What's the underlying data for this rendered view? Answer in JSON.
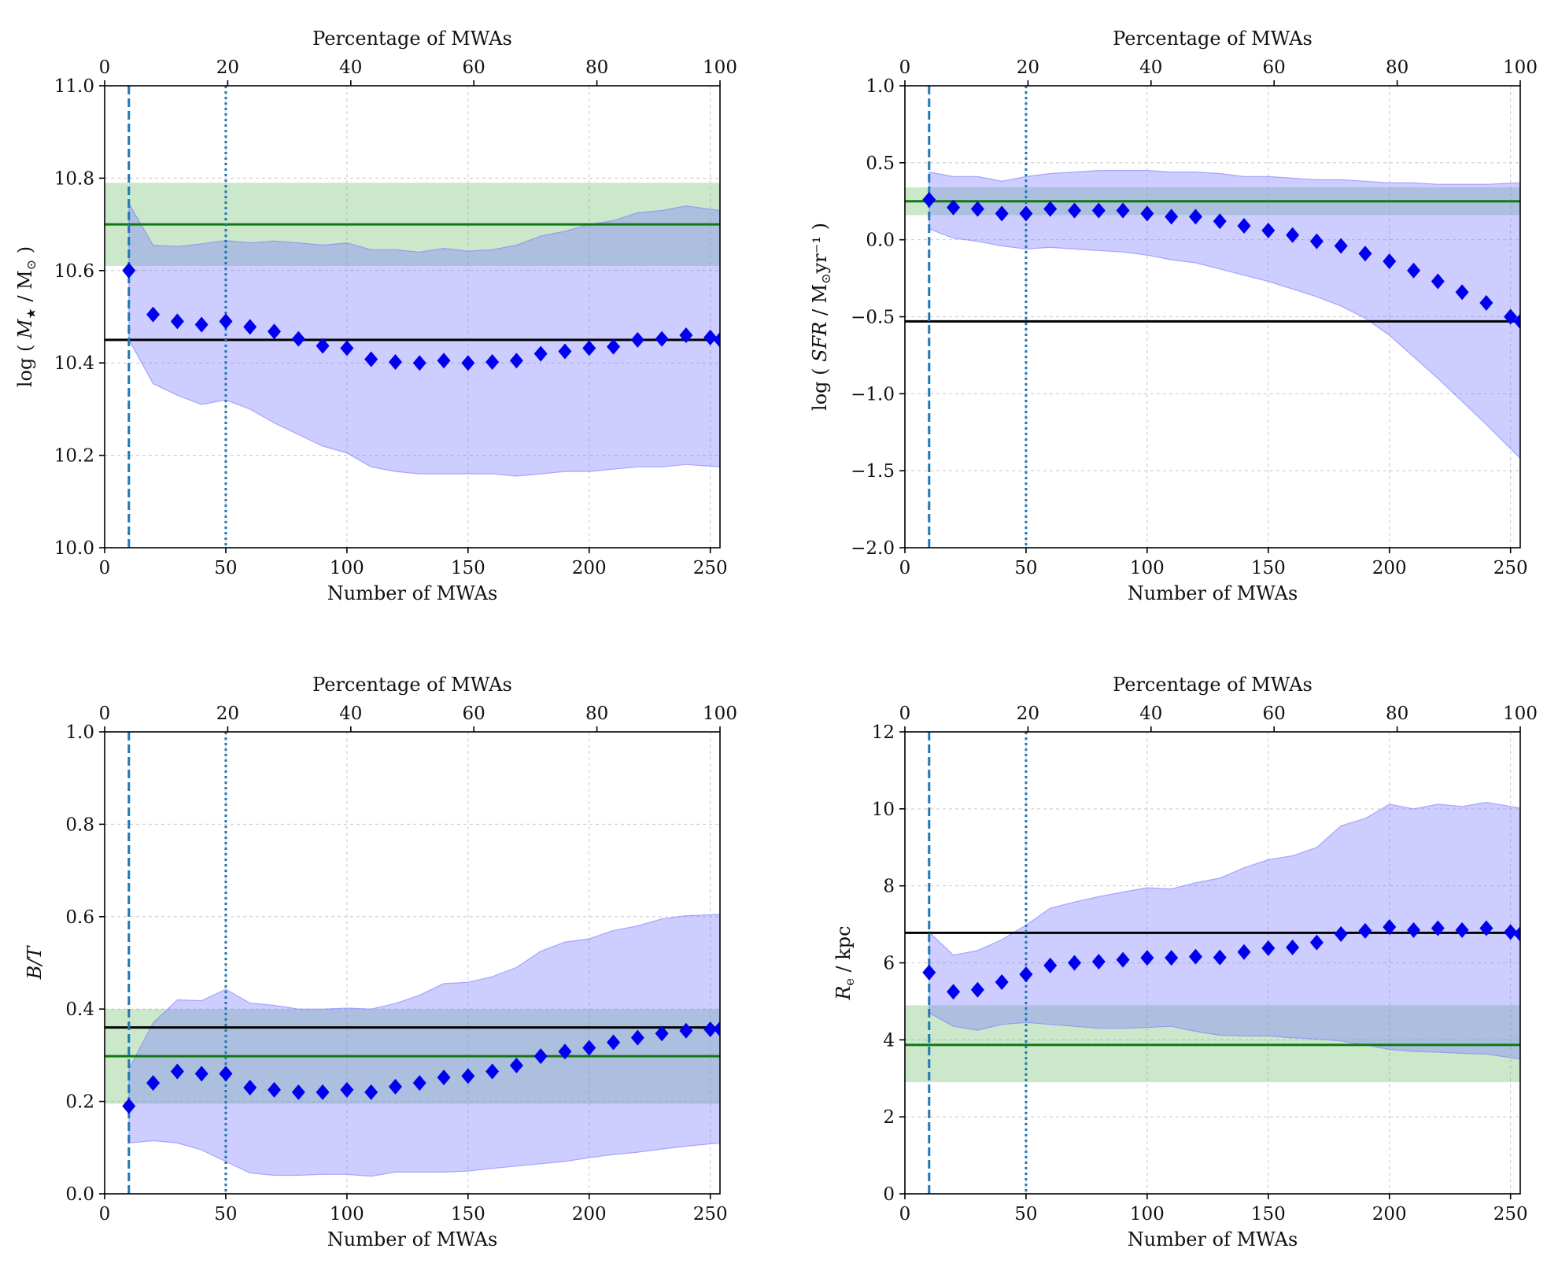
{
  "colors": {
    "band": "#7b7bff",
    "reference_band": "#5cb85c",
    "points": "#0000ee",
    "reference_line": "#117711",
    "sample_line": "#000000",
    "marker_lines": "#1f77b4"
  },
  "chart_data": [
    {
      "type": "scatter",
      "id": "stellar-mass",
      "xlabel": "Number of MWAs",
      "x2label": "Percentage of MWAs",
      "ylabel_parts": [
        "log ( ",
        "M",
        "★",
        " / M",
        "⊙",
        " )"
      ],
      "xlim": [
        0,
        254
      ],
      "ylim": [
        10.0,
        11.0
      ],
      "xticks": [
        0,
        50,
        100,
        150,
        200,
        250
      ],
      "x2ticks": [
        0,
        20,
        40,
        60,
        80,
        100
      ],
      "yticks": [
        10.0,
        10.2,
        10.4,
        10.6,
        10.8,
        11.0
      ],
      "ytick_labels": [
        "10.0",
        "10.2",
        "10.4",
        "10.6",
        "10.8",
        "11.0"
      ],
      "band": {
        "x": [
          10,
          20,
          30,
          40,
          50,
          60,
          70,
          80,
          90,
          100,
          110,
          120,
          130,
          140,
          150,
          160,
          170,
          180,
          190,
          200,
          210,
          220,
          230,
          240,
          254
        ],
        "lower": [
          10.45,
          10.355,
          10.33,
          10.31,
          10.32,
          10.3,
          10.27,
          10.245,
          10.22,
          10.205,
          10.175,
          10.165,
          10.16,
          10.16,
          10.16,
          10.16,
          10.155,
          10.16,
          10.165,
          10.165,
          10.17,
          10.175,
          10.175,
          10.18,
          10.175
        ],
        "upper": [
          10.745,
          10.655,
          10.652,
          10.658,
          10.665,
          10.66,
          10.664,
          10.66,
          10.655,
          10.66,
          10.645,
          10.645,
          10.64,
          10.648,
          10.642,
          10.645,
          10.655,
          10.675,
          10.685,
          10.7,
          10.708,
          10.725,
          10.73,
          10.74,
          10.73
        ]
      },
      "points": {
        "x": [
          10,
          20,
          30,
          40,
          50,
          60,
          70,
          80,
          90,
          100,
          110,
          120,
          130,
          140,
          150,
          160,
          170,
          180,
          190,
          200,
          210,
          220,
          230,
          240,
          250,
          254
        ],
        "y": [
          10.6,
          10.505,
          10.49,
          10.483,
          10.49,
          10.478,
          10.468,
          10.452,
          10.437,
          10.432,
          10.408,
          10.402,
          10.4,
          10.405,
          10.4,
          10.402,
          10.405,
          10.42,
          10.425,
          10.432,
          10.435,
          10.45,
          10.452,
          10.46,
          10.455,
          10.45
        ]
      },
      "reference_band": [
        10.61,
        10.79
      ],
      "reference_line": 10.7,
      "sample_line": 10.45,
      "dashed_x": 10,
      "dotted_x": 50
    },
    {
      "type": "scatter",
      "id": "star-formation-rate",
      "xlabel": "Number of MWAs",
      "x2label": "Percentage of MWAs",
      "ylabel_parts": [
        "log ( ",
        "SFR",
        "",
        " / M",
        "⊙",
        "yr⁻¹ )"
      ],
      "xlim": [
        0,
        254
      ],
      "ylim": [
        -2.0,
        1.0
      ],
      "xticks": [
        0,
        50,
        100,
        150,
        200,
        250
      ],
      "x2ticks": [
        0,
        20,
        40,
        60,
        80,
        100
      ],
      "yticks": [
        -2.0,
        -1.5,
        -1.0,
        -0.5,
        0.0,
        0.5,
        1.0
      ],
      "ytick_labels": [
        "−2.0",
        "−1.5",
        "−1.0",
        "−0.5",
        "0.0",
        "0.5",
        "1.0"
      ],
      "band": {
        "x": [
          10,
          20,
          30,
          40,
          50,
          60,
          70,
          80,
          90,
          100,
          110,
          120,
          130,
          140,
          150,
          160,
          170,
          180,
          190,
          200,
          210,
          220,
          230,
          240,
          254
        ],
        "lower": [
          0.07,
          0.01,
          -0.01,
          -0.04,
          -0.06,
          -0.05,
          -0.06,
          -0.07,
          -0.08,
          -0.1,
          -0.13,
          -0.15,
          -0.19,
          -0.23,
          -0.27,
          -0.32,
          -0.37,
          -0.43,
          -0.51,
          -0.62,
          -0.76,
          -0.9,
          -1.05,
          -1.2,
          -1.42
        ],
        "upper": [
          0.44,
          0.41,
          0.41,
          0.38,
          0.41,
          0.43,
          0.44,
          0.45,
          0.45,
          0.45,
          0.44,
          0.44,
          0.43,
          0.41,
          0.41,
          0.4,
          0.39,
          0.39,
          0.38,
          0.37,
          0.37,
          0.36,
          0.36,
          0.36,
          0.37
        ]
      },
      "points": {
        "x": [
          10,
          20,
          30,
          40,
          50,
          60,
          70,
          80,
          90,
          100,
          110,
          120,
          130,
          140,
          150,
          160,
          170,
          180,
          190,
          200,
          210,
          220,
          230,
          240,
          250,
          254
        ],
        "y": [
          0.26,
          0.21,
          0.2,
          0.17,
          0.17,
          0.2,
          0.19,
          0.19,
          0.19,
          0.17,
          0.15,
          0.15,
          0.12,
          0.09,
          0.06,
          0.03,
          -0.01,
          -0.04,
          -0.09,
          -0.14,
          -0.2,
          -0.27,
          -0.34,
          -0.41,
          -0.5,
          -0.53
        ]
      },
      "reference_band": [
        0.16,
        0.34
      ],
      "reference_line": 0.25,
      "sample_line": -0.53,
      "dashed_x": 10,
      "dotted_x": 50
    },
    {
      "type": "scatter",
      "id": "bulge-to-total",
      "xlabel": "Number of MWAs",
      "x2label": "Percentage of MWAs",
      "ylabel_parts": [
        "",
        "B/T",
        "",
        "",
        "",
        ""
      ],
      "xlim": [
        0,
        254
      ],
      "ylim": [
        0.0,
        1.0
      ],
      "xticks": [
        0,
        50,
        100,
        150,
        200,
        250
      ],
      "x2ticks": [
        0,
        20,
        40,
        60,
        80,
        100
      ],
      "yticks": [
        0.0,
        0.2,
        0.4,
        0.6,
        0.8,
        1.0
      ],
      "ytick_labels": [
        "0.0",
        "0.2",
        "0.4",
        "0.6",
        "0.8",
        "1.0"
      ],
      "band": {
        "x": [
          10,
          20,
          30,
          40,
          50,
          60,
          70,
          80,
          90,
          100,
          110,
          120,
          130,
          140,
          150,
          160,
          170,
          180,
          190,
          200,
          210,
          220,
          230,
          240,
          254
        ],
        "lower": [
          0.11,
          0.115,
          0.11,
          0.095,
          0.07,
          0.045,
          0.04,
          0.04,
          0.042,
          0.042,
          0.038,
          0.047,
          0.047,
          0.047,
          0.049,
          0.055,
          0.06,
          0.065,
          0.07,
          0.078,
          0.085,
          0.09,
          0.097,
          0.103,
          0.11
        ],
        "upper": [
          0.27,
          0.37,
          0.42,
          0.418,
          0.443,
          0.413,
          0.408,
          0.4,
          0.4,
          0.402,
          0.4,
          0.412,
          0.43,
          0.455,
          0.458,
          0.47,
          0.49,
          0.525,
          0.545,
          0.552,
          0.57,
          0.58,
          0.595,
          0.602,
          0.605
        ]
      },
      "points": {
        "x": [
          10,
          20,
          30,
          40,
          50,
          60,
          70,
          80,
          90,
          100,
          110,
          120,
          130,
          140,
          150,
          160,
          170,
          180,
          190,
          200,
          210,
          220,
          230,
          240,
          250,
          254
        ],
        "y": [
          0.19,
          0.24,
          0.265,
          0.26,
          0.26,
          0.23,
          0.225,
          0.22,
          0.22,
          0.225,
          0.22,
          0.232,
          0.24,
          0.252,
          0.255,
          0.265,
          0.278,
          0.298,
          0.308,
          0.316,
          0.328,
          0.338,
          0.347,
          0.353,
          0.356,
          0.357
        ]
      },
      "reference_band": [
        0.195,
        0.4
      ],
      "reference_line": 0.298,
      "sample_line": 0.36,
      "dashed_x": 10,
      "dotted_x": 50
    },
    {
      "type": "scatter",
      "id": "effective-radius",
      "xlabel": "Number of MWAs",
      "x2label": "Percentage of MWAs",
      "ylabel_parts": [
        "",
        "R",
        "e",
        " / kpc",
        "",
        ""
      ],
      "xlim": [
        0,
        254
      ],
      "ylim": [
        0,
        12
      ],
      "xticks": [
        0,
        50,
        100,
        150,
        200,
        250
      ],
      "x2ticks": [
        0,
        20,
        40,
        60,
        80,
        100
      ],
      "yticks": [
        0,
        2,
        4,
        6,
        8,
        10,
        12
      ],
      "ytick_labels": [
        "0",
        "2",
        "4",
        "6",
        "8",
        "10",
        "12"
      ],
      "band": {
        "x": [
          10,
          20,
          30,
          40,
          50,
          60,
          70,
          80,
          90,
          100,
          110,
          120,
          130,
          140,
          150,
          160,
          170,
          180,
          190,
          200,
          210,
          220,
          230,
          240,
          254
        ],
        "lower": [
          4.7,
          4.35,
          4.25,
          4.4,
          4.45,
          4.4,
          4.35,
          4.3,
          4.3,
          4.32,
          4.35,
          4.22,
          4.12,
          4.1,
          4.1,
          4.05,
          4.02,
          3.97,
          3.87,
          3.75,
          3.7,
          3.68,
          3.65,
          3.63,
          3.5
        ],
        "upper": [
          6.8,
          6.2,
          6.32,
          6.6,
          6.98,
          7.42,
          7.58,
          7.72,
          7.84,
          7.95,
          7.92,
          8.08,
          8.2,
          8.47,
          8.68,
          8.78,
          9.0,
          9.56,
          9.75,
          10.12,
          10.0,
          10.12,
          10.06,
          10.17,
          10.02
        ]
      },
      "points": {
        "x": [
          10,
          20,
          30,
          40,
          50,
          60,
          70,
          80,
          90,
          100,
          110,
          120,
          130,
          140,
          150,
          160,
          170,
          180,
          190,
          200,
          210,
          220,
          230,
          240,
          250,
          254
        ],
        "y": [
          5.75,
          5.25,
          5.3,
          5.5,
          5.7,
          5.93,
          6.0,
          6.03,
          6.08,
          6.13,
          6.13,
          6.16,
          6.14,
          6.28,
          6.38,
          6.4,
          6.53,
          6.75,
          6.83,
          6.93,
          6.85,
          6.9,
          6.85,
          6.9,
          6.8,
          6.75
        ]
      },
      "reference_band": [
        2.9,
        4.9
      ],
      "reference_line": 3.87,
      "sample_line": 6.78,
      "dashed_x": 10,
      "dotted_x": 50
    }
  ]
}
